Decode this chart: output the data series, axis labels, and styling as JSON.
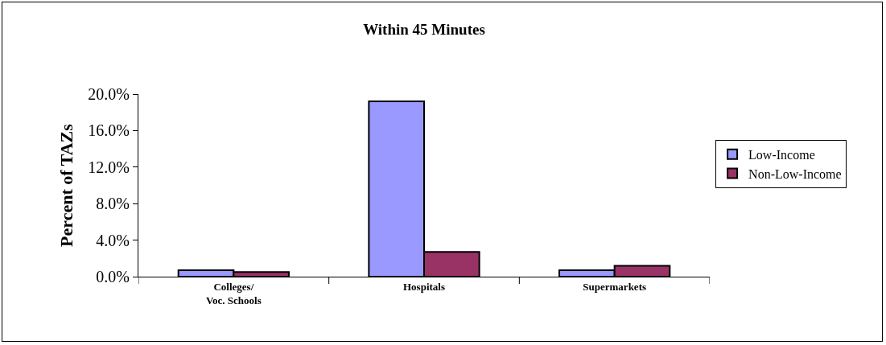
{
  "chart_data": {
    "type": "bar",
    "title": "Within 45 Minutes",
    "ylabel": "Percent of TAZs",
    "categories": [
      "Colleges/\nVoc. Schools",
      "Hospitals",
      "Supermarkets"
    ],
    "series": [
      {
        "name": "Low-Income",
        "color": "#9999ff",
        "values": [
          0.7,
          19.2,
          0.7
        ]
      },
      {
        "name": "Non-Low-Income",
        "color": "#993366",
        "values": [
          0.5,
          2.7,
          1.2
        ]
      }
    ],
    "ylim": [
      0,
      20
    ],
    "yticks": [
      {
        "value": 0,
        "label": "0.0%"
      },
      {
        "value": 4,
        "label": "4.0%"
      },
      {
        "value": 8,
        "label": "8.0%"
      },
      {
        "value": 12,
        "label": "12.0%"
      },
      {
        "value": 16,
        "label": "16.0%"
      },
      {
        "value": 20,
        "label": "20.0%"
      }
    ],
    "grid": false,
    "legend": "right"
  }
}
